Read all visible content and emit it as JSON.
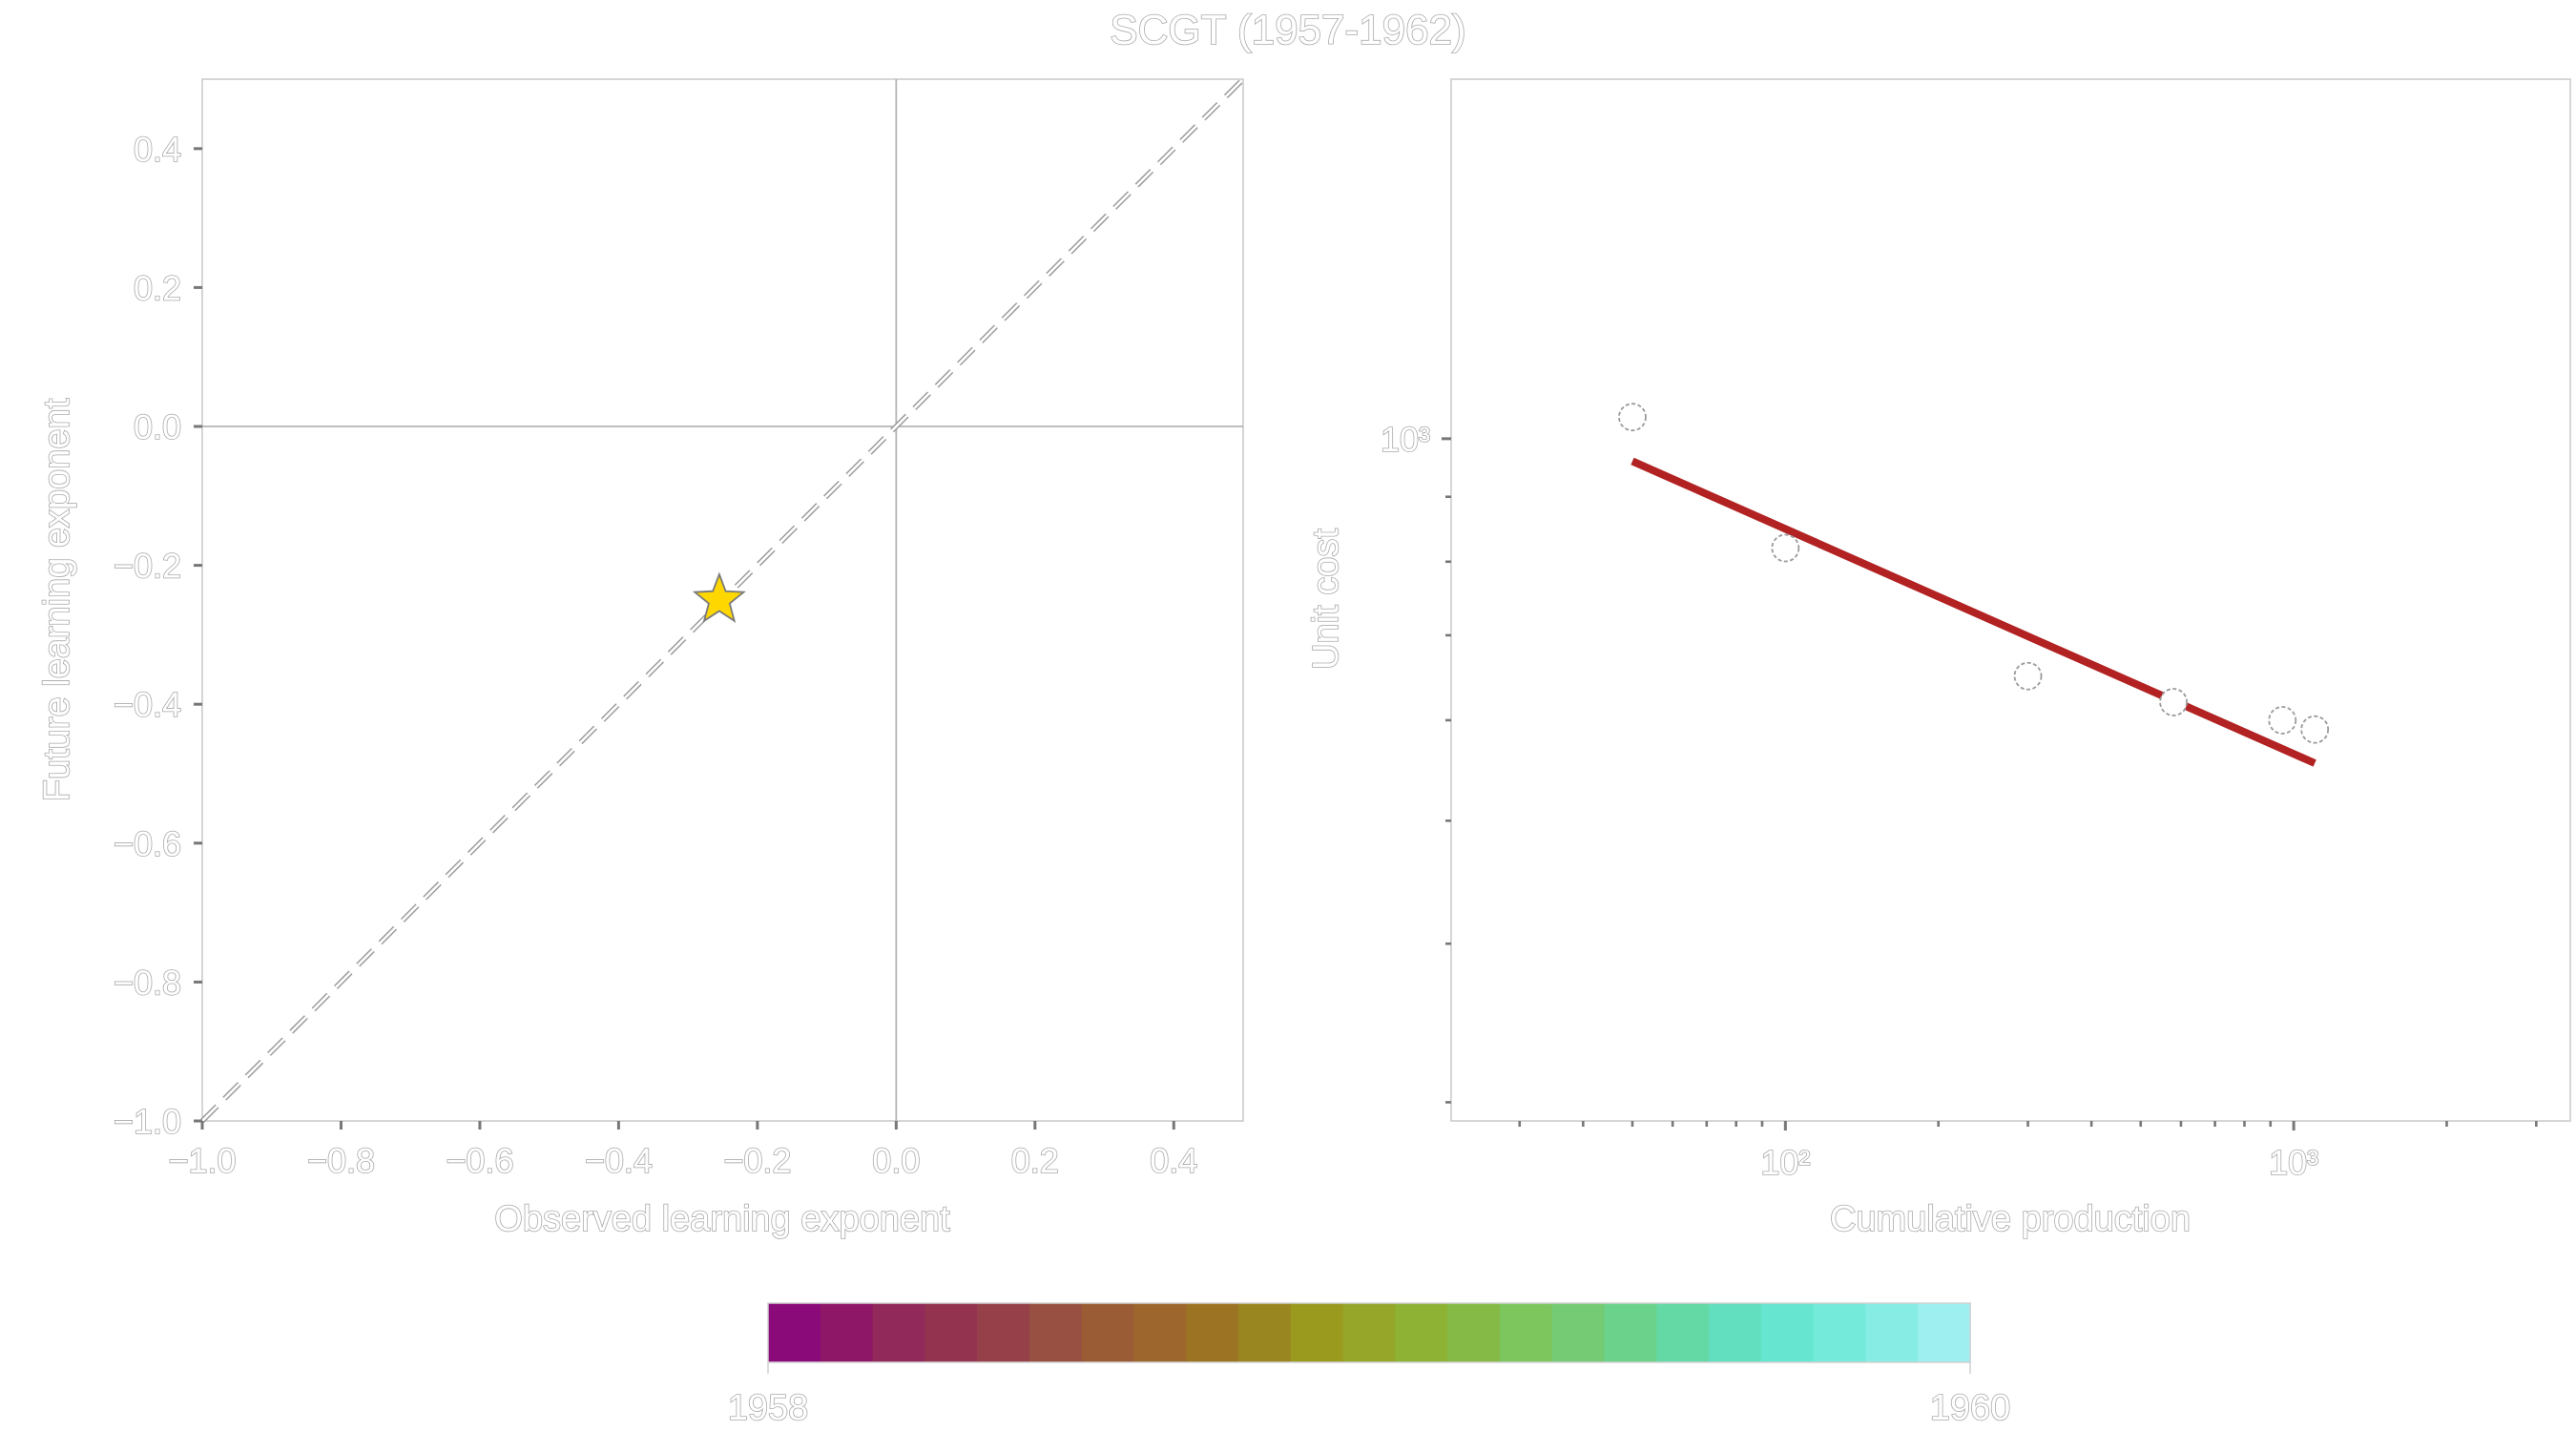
{
  "figure_title": "SCGT (1957-1962)",
  "chart_data": [
    {
      "type": "scatter",
      "panel": "left",
      "xlabel": "Observed learning exponent",
      "ylabel": "Future learning exponent",
      "xlim": [
        -1.0,
        0.5
      ],
      "ylim": [
        -1.0,
        0.5
      ],
      "xticks": [
        -1.0,
        -0.8,
        -0.6,
        -0.4,
        -0.2,
        0.0,
        0.2,
        0.4
      ],
      "yticks": [
        -1.0,
        -0.8,
        -0.6,
        -0.4,
        -0.2,
        0.0,
        0.2,
        0.4
      ],
      "xtick_labels": [
        "−1.0",
        "−0.8",
        "−0.6",
        "−0.4",
        "−0.2",
        "0.0",
        "0.2",
        "0.4"
      ],
      "ytick_labels": [
        "−1.0",
        "−0.8",
        "−0.6",
        "−0.4",
        "−0.2",
        "0.0",
        "0.2",
        "0.4"
      ],
      "reference_lines": {
        "identity_dashed": true,
        "x_zero": true,
        "y_zero": true
      },
      "points": [
        {
          "x": -0.255,
          "y": -0.25,
          "marker": "star",
          "color": "#FFD700"
        }
      ],
      "grid": false
    },
    {
      "type": "scatter",
      "panel": "right",
      "xlabel": "Cumulative production",
      "ylabel": "Unit cost",
      "xscale": "log",
      "yscale": "log",
      "xlim": [
        22,
        3500
      ],
      "ylim": [
        290,
        1920
      ],
      "xtick_labels": [
        "10²",
        "10³"
      ],
      "ytick_labels": [
        "10³"
      ],
      "points": [
        {
          "x": 50,
          "y": 1040
        },
        {
          "x": 100,
          "y": 820
        },
        {
          "x": 300,
          "y": 650
        },
        {
          "x": 580,
          "y": 620
        },
        {
          "x": 950,
          "y": 600
        },
        {
          "x": 1100,
          "y": 590
        }
      ],
      "fit_line": {
        "x": [
          50,
          1100
        ],
        "y": [
          960,
          555
        ],
        "color": "#B22222"
      },
      "grid": false
    }
  ],
  "colorbar": {
    "min_label": "1958",
    "max_label": "1960",
    "colors": [
      "#8B0A7A",
      "#8F1767",
      "#912A5A",
      "#93334F",
      "#96404A",
      "#985042",
      "#9A5C35",
      "#9C662D",
      "#9C7322",
      "#9A8620",
      "#999A1E",
      "#96A628",
      "#8EB234",
      "#86BA47",
      "#7DC65E",
      "#74CB73",
      "#6BD28C",
      "#64D9A6",
      "#62DFBE",
      "#66E6D0",
      "#74EADA",
      "#87EDE4",
      "#9DEFF0"
    ]
  }
}
